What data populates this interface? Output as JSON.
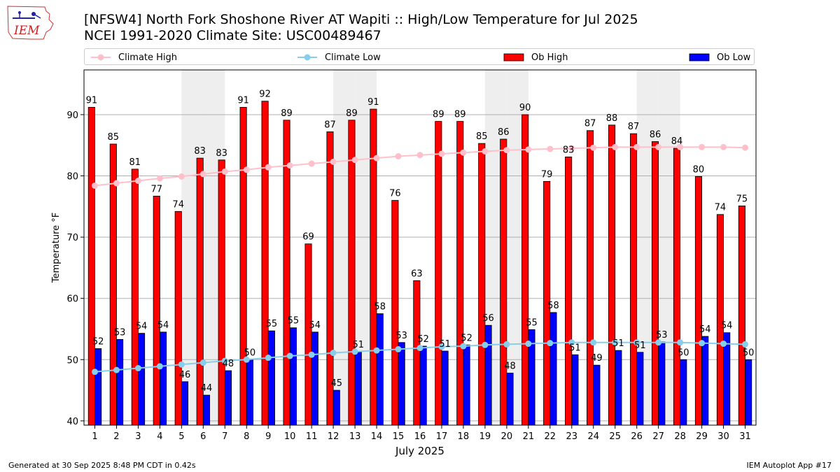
{
  "header": {
    "title_line1": "[NFSW4] North Fork Shoshone River  AT Wapiti :: High/Low Temperature for Jul 2025",
    "title_line2": "NCEI 1991-2020 Climate Site: USC00489467",
    "logo_text": "IEM"
  },
  "footer": {
    "generated": "Generated at 30 Sep 2025 8:48 PM CDT in 0.42s",
    "app": "IEM Autoplot App #17"
  },
  "legend": [
    {
      "label": "Climate High"
    },
    {
      "label": "Climate Low"
    },
    {
      "label": "Ob High"
    },
    {
      "label": "Ob Low"
    }
  ],
  "colors": {
    "ob_high": "#ff0000",
    "ob_low": "#0000ff",
    "climate_high": "#ffc0cb",
    "climate_low": "#87ceeb",
    "weekend_shade": "#eeeeee",
    "grid": "#b0b0b0"
  },
  "chart_data": {
    "type": "bar",
    "title": "[NFSW4] North Fork Shoshone River  AT Wapiti :: High/Low Temperature for Jul 2025",
    "xlabel": "July 2025",
    "ylabel": "Temperature °F",
    "ylim": [
      39.3,
      97.3
    ],
    "yticks": [
      40,
      50,
      60,
      70,
      80,
      90
    ],
    "grid": "horizontal",
    "legend_position": "top",
    "categories": [
      "1",
      "2",
      "3",
      "4",
      "5",
      "6",
      "7",
      "8",
      "9",
      "10",
      "11",
      "12",
      "13",
      "14",
      "15",
      "16",
      "17",
      "18",
      "19",
      "20",
      "21",
      "22",
      "23",
      "24",
      "25",
      "26",
      "27",
      "28",
      "29",
      "30",
      "31"
    ],
    "shaded_weekend_days": [
      5,
      6,
      12,
      13,
      19,
      20,
      26,
      27
    ],
    "series": [
      {
        "name": "Ob High",
        "kind": "bar",
        "values": [
          91.2,
          85.2,
          81.1,
          76.7,
          74.2,
          82.9,
          82.6,
          91.2,
          92.2,
          89.1,
          68.9,
          87.2,
          89.1,
          90.9,
          76.0,
          62.9,
          88.9,
          88.9,
          85.3,
          86.0,
          90.0,
          79.1,
          83.1,
          87.4,
          88.3,
          86.9,
          85.6,
          84.5,
          79.9,
          73.7,
          75.1
        ],
        "labels": [
          "91",
          "85",
          "81",
          "77",
          "74",
          "83",
          "83",
          "91",
          "92",
          "89",
          "69",
          "87",
          "89",
          "91",
          "76",
          "63",
          "89",
          "89",
          "85",
          "86",
          "90",
          "79",
          "83",
          "87",
          "88",
          "87",
          "86",
          "84",
          "80",
          "74",
          "75"
        ]
      },
      {
        "name": "Ob Low",
        "kind": "bar",
        "values": [
          51.8,
          53.3,
          54.3,
          54.5,
          46.4,
          44.2,
          48.2,
          50.0,
          54.7,
          55.2,
          54.5,
          45.0,
          51.3,
          57.5,
          52.8,
          52.2,
          51.4,
          52.4,
          55.6,
          47.8,
          54.9,
          57.7,
          50.8,
          49.1,
          51.5,
          51.2,
          52.9,
          50.0,
          53.8,
          54.4,
          50.0
        ],
        "labels": [
          "52",
          "53",
          "54",
          "54",
          "46",
          "44",
          "48",
          "50",
          "55",
          "55",
          "54",
          "45",
          "51",
          "58",
          "53",
          "52",
          "51",
          "52",
          "56",
          "48",
          "55",
          "58",
          "51",
          "49",
          "51",
          "51",
          "53",
          "50",
          "54",
          "54",
          "50"
        ]
      },
      {
        "name": "Climate High",
        "kind": "line",
        "values": [
          78.4,
          78.8,
          79.2,
          79.6,
          79.9,
          80.3,
          80.7,
          81.0,
          81.4,
          81.7,
          82.0,
          82.3,
          82.6,
          82.9,
          83.2,
          83.4,
          83.6,
          83.8,
          84.0,
          84.2,
          84.3,
          84.4,
          84.5,
          84.6,
          84.7,
          84.7,
          84.7,
          84.7,
          84.7,
          84.7,
          84.6
        ]
      },
      {
        "name": "Climate Low",
        "kind": "line",
        "values": [
          48.0,
          48.3,
          48.6,
          48.9,
          49.2,
          49.5,
          49.8,
          50.0,
          50.3,
          50.6,
          50.8,
          51.1,
          51.3,
          51.5,
          51.7,
          51.9,
          52.1,
          52.2,
          52.4,
          52.5,
          52.6,
          52.7,
          52.8,
          52.8,
          52.8,
          52.8,
          52.8,
          52.8,
          52.7,
          52.6,
          52.5
        ]
      }
    ]
  }
}
